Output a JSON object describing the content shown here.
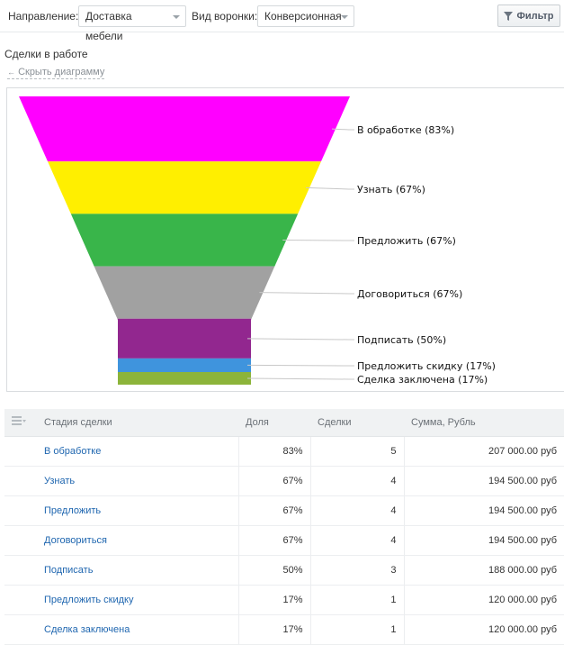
{
  "toolbar": {
    "direction_label": "Направление:",
    "direction_value": "Доставка мебели",
    "funnel_type_label": "Вид воронки:",
    "funnel_type_value": "Конверсионная",
    "filter_label": "Фильтр"
  },
  "section_title": "Сделки в работе",
  "hide_chart_label": "Скрыть диаграмму",
  "chart_data": {
    "type": "funnel",
    "stages": [
      {
        "label": "В обработке (83%)",
        "value": 83,
        "color": "#ff00ff"
      },
      {
        "label": "Узнать (67%)",
        "value": 67,
        "color": "#ffef00"
      },
      {
        "label": "Предложить (67%)",
        "value": 67,
        "color": "#39b54a"
      },
      {
        "label": "Договориться (67%)",
        "value": 67,
        "color": "#a1a1a1"
      },
      {
        "label": "Подписать (50%)",
        "value": 50,
        "color": "#92278f"
      },
      {
        "label": "Предложить скидку (17%)",
        "value": 17,
        "color": "#3f94dd"
      },
      {
        "label": "Сделка заключена (17%)",
        "value": 17,
        "color": "#8cb43a"
      }
    ]
  },
  "table": {
    "headers": [
      "Стадия сделки",
      "Доля",
      "Сделки",
      "Сумма, Рубль"
    ],
    "rows": [
      {
        "stage": "В обработке",
        "share": "83%",
        "deals": "5",
        "sum": "207 000.00 руб"
      },
      {
        "stage": "Узнать",
        "share": "67%",
        "deals": "4",
        "sum": "194 500.00 руб"
      },
      {
        "stage": "Предложить",
        "share": "67%",
        "deals": "4",
        "sum": "194 500.00 руб"
      },
      {
        "stage": "Договориться",
        "share": "67%",
        "deals": "4",
        "sum": "194 500.00 руб"
      },
      {
        "stage": "Подписать",
        "share": "50%",
        "deals": "3",
        "sum": "188 000.00 руб"
      },
      {
        "stage": "Предложить скидку",
        "share": "17%",
        "deals": "1",
        "sum": "120 000.00 руб"
      },
      {
        "stage": "Сделка заключена",
        "share": "17%",
        "deals": "1",
        "sum": "120 000.00 руб"
      }
    ]
  }
}
